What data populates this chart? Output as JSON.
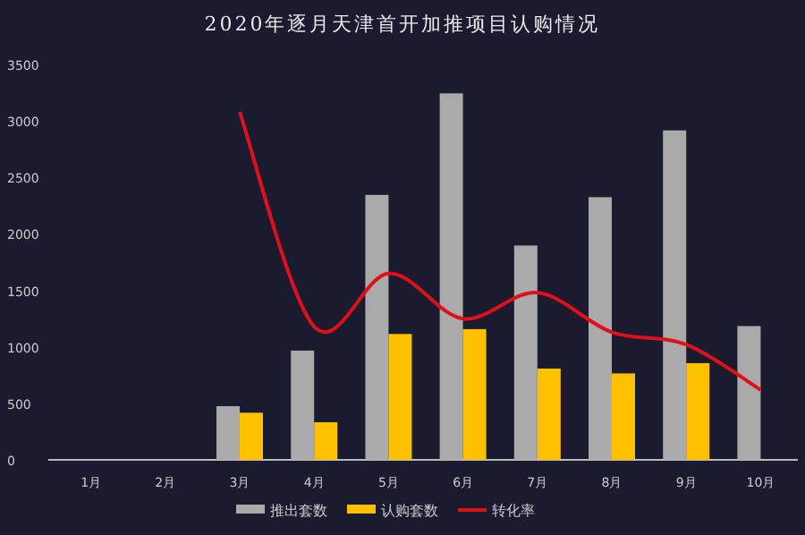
{
  "chart_data": {
    "type": "bar",
    "title": "2020年逐月天津首开加推项目认购情况",
    "categories": [
      "1月",
      "2月",
      "3月",
      "4月",
      "5月",
      "6月",
      "7月",
      "8月",
      "9月",
      "10月"
    ],
    "series": [
      {
        "name": "推出套数",
        "color": "#aaaaaa",
        "values": [
          null,
          null,
          475,
          967,
          2345,
          3244,
          1897,
          2325,
          2916,
          1184
        ]
      },
      {
        "name": "认购套数",
        "color": "#ffc000",
        "values": [
          null,
          null,
          417,
          333,
          1114,
          1157,
          808,
          765,
          856,
          null
        ]
      },
      {
        "name": "转化率",
        "type": "line",
        "color": "#e0101a",
        "values": [
          null,
          null,
          3080,
          1180,
          1650,
          1250,
          1480,
          1130,
          1020,
          620
        ]
      }
    ],
    "ylim": [
      0,
      3500
    ],
    "yticks": [
      0,
      500,
      1000,
      1500,
      2000,
      2500,
      3000,
      3500
    ],
    "grid": false,
    "legend": "bottom",
    "marker": "none",
    "line_style": "solid"
  }
}
